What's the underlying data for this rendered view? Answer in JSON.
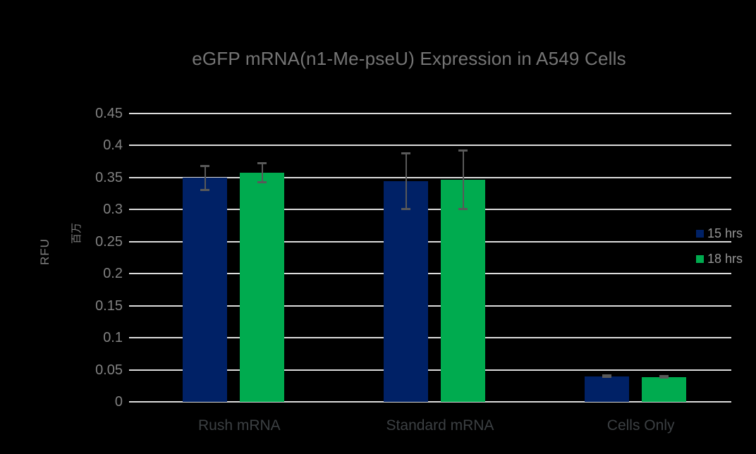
{
  "chart_data": {
    "type": "bar",
    "title": "eGFP mRNA(n1-Me-pseU) Expression in A549 Cells",
    "ylabel": "RFU",
    "y_unit_label": "百万",
    "xlabel": "",
    "categories": [
      "Rush mRNA",
      "Standard mRNA",
      "Cells Only"
    ],
    "series": [
      {
        "name": "15 hrs",
        "color": "#002166",
        "values": [
          0.349,
          0.344,
          0.04
        ],
        "errors": [
          0.019,
          0.044,
          0.002
        ]
      },
      {
        "name": "18 hrs",
        "color": "#00AB4F",
        "values": [
          0.357,
          0.346,
          0.039
        ],
        "errors": [
          0.015,
          0.046,
          0.002
        ]
      }
    ],
    "ylim": [
      0,
      0.45
    ],
    "ytick_step": 0.05,
    "ytick_labels": [
      "0",
      "0.05",
      "0.1",
      "0.15",
      "0.2",
      "0.25",
      "0.3",
      "0.35",
      "0.4",
      "0.45"
    ],
    "grid": true,
    "error_bars": true,
    "legend_position": "right"
  },
  "style": {
    "background": "#000000",
    "gridline_color": "#dcdcdc",
    "title_color": "#757575",
    "ytick_color": "#828282",
    "axis_title_color": "#7d7d7d",
    "category_label_color": "#3c4043",
    "legend_text_color": "#969696",
    "error_bar_color": "#595959"
  }
}
